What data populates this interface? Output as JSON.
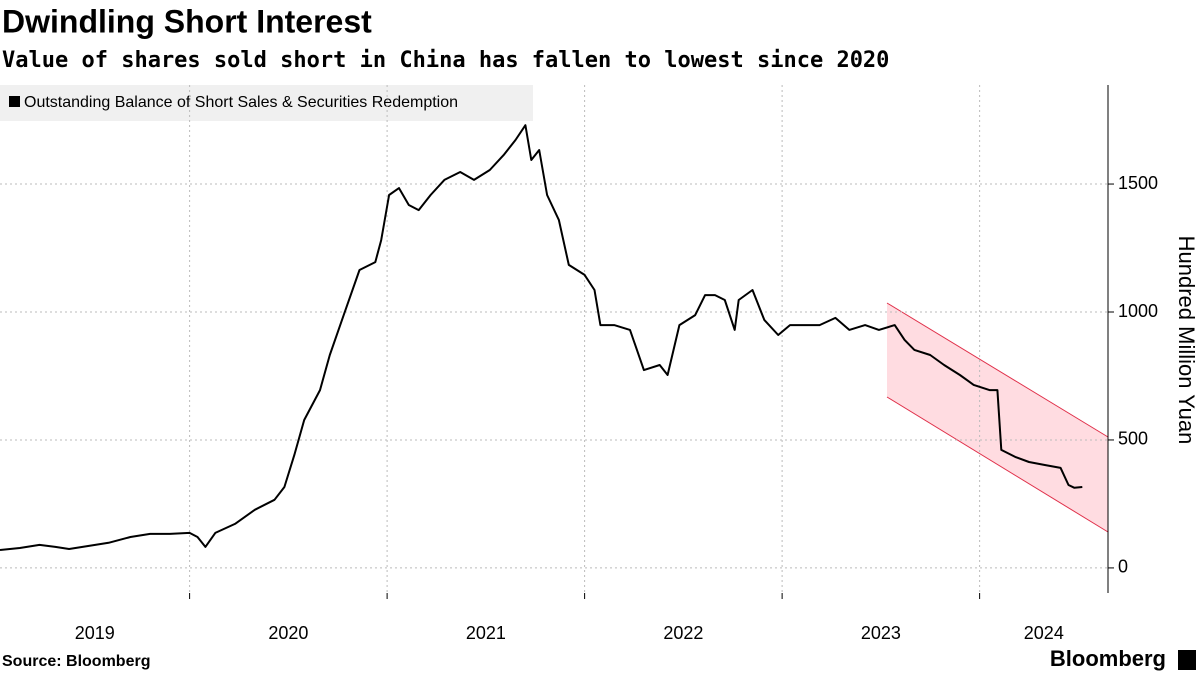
{
  "chart_data": {
    "type": "line",
    "title": "Dwindling Short Interest",
    "subtitle": "Value of shares sold short in China has fallen to lowest since 2020",
    "y_label": "Hundred Million Yuan",
    "source": "Source: Bloomberg",
    "brand": "Bloomberg",
    "x": [
      2019.04,
      2019.14,
      2019.24,
      2019.32,
      2019.39,
      2019.49,
      2019.59,
      2019.7,
      2019.8,
      2019.9,
      2020.0,
      2020.04,
      2020.08,
      2020.13,
      2020.23,
      2020.33,
      2020.43,
      2020.48,
      2020.53,
      2020.58,
      2020.66,
      2020.71,
      2020.78,
      2020.86,
      2020.94,
      2020.97,
      2021.01,
      2021.06,
      2021.11,
      2021.16,
      2021.22,
      2021.29,
      2021.37,
      2021.44,
      2021.52,
      2021.59,
      2021.65,
      2021.7,
      2021.73,
      2021.77,
      2021.81,
      2021.87,
      2021.92,
      2022.0,
      2022.05,
      2022.08,
      2022.15,
      2022.23,
      2022.3,
      2022.38,
      2022.42,
      2022.48,
      2022.56,
      2022.61,
      2022.66,
      2022.71,
      2022.76,
      2022.78,
      2022.85,
      2022.91,
      2022.98,
      2023.04,
      2023.11,
      2023.19,
      2023.27,
      2023.34,
      2023.42,
      2023.49,
      2023.57,
      2023.62,
      2023.67,
      2023.75,
      2023.82,
      2023.9,
      2023.97,
      2024.05,
      2024.09,
      2024.11,
      2024.18,
      2024.25,
      2024.33,
      2024.41,
      2024.45,
      2024.48,
      2024.52
    ],
    "series": [
      {
        "name": "Outstanding Balance of Short Sales & Securities Redemption",
        "color": "#000000",
        "values": [
          70,
          78,
          90,
          82,
          74,
          86,
          98,
          121,
          133,
          133,
          137,
          121,
          82,
          137,
          172,
          227,
          266,
          316,
          441,
          578,
          695,
          832,
          988,
          1164,
          1195,
          1281,
          1457,
          1484,
          1418,
          1398,
          1457,
          1516,
          1547,
          1516,
          1555,
          1613,
          1672,
          1730,
          1594,
          1633,
          1457,
          1359,
          1184,
          1145,
          1086,
          949,
          949,
          930,
          773,
          793,
          754,
          949,
          988,
          1066,
          1066,
          1047,
          930,
          1047,
          1086,
          969,
          910,
          949,
          949,
          949,
          977,
          930,
          949,
          930,
          949,
          891,
          852,
          832,
          793,
          754,
          715,
          695,
          695,
          461,
          434,
          414,
          402,
          391,
          324,
          313,
          316
        ]
      }
    ],
    "xlim": [
      2019.04,
      2024.65
    ],
    "xticks": [
      2019,
      2020,
      2021,
      2022,
      2023,
      2024
    ],
    "ylim": [
      -98,
      1887
    ],
    "yticks": [
      0,
      500,
      1000,
      1500
    ],
    "grid": true
  }
}
